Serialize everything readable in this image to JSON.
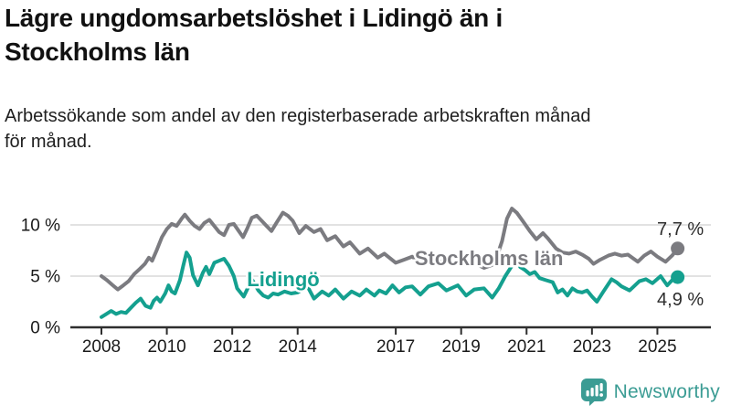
{
  "header": {
    "title": "Lägre ungdomsarbetslöshet i Lidingö än i\nStockholms län",
    "subtitle": "Arbetssökande som andel av den registerbaserade arbetskraften månad\nför månad."
  },
  "chart_data": {
    "type": "line",
    "title": "Lägre ungdomsarbetslöshet i Lidingö än i Stockholms län",
    "subtitle": "Arbetssökande som andel av den registerbaserade arbetskraften månad för månad.",
    "unit": "%",
    "xlim": [
      2007.85,
      2025.95
    ],
    "ylim": [
      0,
      12.4
    ],
    "grid": "horizontal-gridlines-at-5-and-10",
    "legend": "inline-series-labels",
    "y_ticks": [
      {
        "value": 0,
        "label": "0 %"
      },
      {
        "value": 5,
        "label": "5 %"
      },
      {
        "value": 10,
        "label": "10 %"
      }
    ],
    "x_ticks": [
      {
        "value": 2008,
        "label": "2008"
      },
      {
        "value": 2010,
        "label": "2010"
      },
      {
        "value": 2012,
        "label": "2012"
      },
      {
        "value": 2014,
        "label": "2014"
      },
      {
        "value": 2017,
        "label": "2017"
      },
      {
        "value": 2019,
        "label": "2019"
      },
      {
        "value": 2021,
        "label": "2021"
      },
      {
        "value": 2023,
        "label": "2023"
      },
      {
        "value": 2025,
        "label": "2025"
      }
    ],
    "series": [
      {
        "name": "Stockholms län",
        "color": "#7b7b80",
        "end_label": "7,7 %",
        "end_label_pos": "above",
        "label_anchor": [
          2019.85,
          6.05
        ],
        "points": [
          [
            2008.0,
            5.0
          ],
          [
            2008.17,
            4.6
          ],
          [
            2008.33,
            4.15
          ],
          [
            2008.5,
            3.7
          ],
          [
            2008.67,
            4.1
          ],
          [
            2008.83,
            4.5
          ],
          [
            2009.0,
            5.2
          ],
          [
            2009.17,
            5.7
          ],
          [
            2009.33,
            6.2
          ],
          [
            2009.45,
            6.8
          ],
          [
            2009.55,
            6.5
          ],
          [
            2009.7,
            7.6
          ],
          [
            2009.85,
            8.8
          ],
          [
            2010.0,
            9.6
          ],
          [
            2010.15,
            10.1
          ],
          [
            2010.3,
            9.9
          ],
          [
            2010.45,
            10.6
          ],
          [
            2010.55,
            11.0
          ],
          [
            2010.7,
            10.4
          ],
          [
            2010.85,
            9.9
          ],
          [
            2011.0,
            9.6
          ],
          [
            2011.15,
            10.2
          ],
          [
            2011.3,
            10.5
          ],
          [
            2011.45,
            9.9
          ],
          [
            2011.6,
            9.3
          ],
          [
            2011.75,
            9.0
          ],
          [
            2011.9,
            10.0
          ],
          [
            2012.05,
            10.1
          ],
          [
            2012.2,
            9.4
          ],
          [
            2012.33,
            8.8
          ],
          [
            2012.45,
            9.6
          ],
          [
            2012.6,
            10.7
          ],
          [
            2012.75,
            10.9
          ],
          [
            2012.9,
            10.4
          ],
          [
            2013.05,
            9.9
          ],
          [
            2013.2,
            9.4
          ],
          [
            2013.35,
            10.2
          ],
          [
            2013.55,
            11.2
          ],
          [
            2013.7,
            10.9
          ],
          [
            2013.85,
            10.4
          ],
          [
            2014.05,
            9.2
          ],
          [
            2014.25,
            9.9
          ],
          [
            2014.5,
            9.3
          ],
          [
            2014.7,
            9.6
          ],
          [
            2014.9,
            8.5
          ],
          [
            2015.15,
            8.9
          ],
          [
            2015.4,
            7.9
          ],
          [
            2015.6,
            8.3
          ],
          [
            2015.9,
            7.2
          ],
          [
            2016.15,
            7.7
          ],
          [
            2016.45,
            6.8
          ],
          [
            2016.65,
            7.2
          ],
          [
            2017.0,
            6.3
          ],
          [
            2017.25,
            6.6
          ],
          [
            2017.5,
            6.9
          ],
          [
            2017.75,
            6.3
          ],
          [
            2018.05,
            6.7
          ],
          [
            2018.35,
            6.4
          ],
          [
            2018.65,
            6.6
          ],
          [
            2018.95,
            6.1
          ],
          [
            2019.2,
            6.3
          ],
          [
            2019.45,
            6.2
          ],
          [
            2019.7,
            5.8
          ],
          [
            2019.95,
            6.1
          ],
          [
            2020.1,
            7.0
          ],
          [
            2020.25,
            8.4
          ],
          [
            2020.4,
            10.6
          ],
          [
            2020.55,
            11.6
          ],
          [
            2020.7,
            11.2
          ],
          [
            2020.9,
            10.3
          ],
          [
            2021.1,
            9.4
          ],
          [
            2021.3,
            8.6
          ],
          [
            2021.5,
            9.2
          ],
          [
            2021.65,
            8.7
          ],
          [
            2021.9,
            7.7
          ],
          [
            2022.1,
            7.3
          ],
          [
            2022.3,
            7.2
          ],
          [
            2022.5,
            7.4
          ],
          [
            2022.7,
            7.1
          ],
          [
            2022.9,
            6.7
          ],
          [
            2023.05,
            6.2
          ],
          [
            2023.25,
            6.6
          ],
          [
            2023.5,
            7.0
          ],
          [
            2023.7,
            7.2
          ],
          [
            2023.9,
            7.0
          ],
          [
            2024.1,
            7.1
          ],
          [
            2024.4,
            6.4
          ],
          [
            2024.6,
            7.0
          ],
          [
            2024.8,
            7.4
          ],
          [
            2025.0,
            6.9
          ],
          [
            2025.25,
            6.4
          ],
          [
            2025.45,
            7.0
          ],
          [
            2025.62,
            7.7
          ]
        ]
      },
      {
        "name": "Lidingö",
        "color": "#14a08f",
        "end_label": "4,9 %",
        "end_label_pos": "below",
        "label_anchor": [
          2013.56,
          4.02
        ],
        "points": [
          [
            2008.0,
            1.0
          ],
          [
            2008.15,
            1.3
          ],
          [
            2008.3,
            1.6
          ],
          [
            2008.45,
            1.3
          ],
          [
            2008.6,
            1.5
          ],
          [
            2008.75,
            1.4
          ],
          [
            2008.9,
            1.9
          ],
          [
            2009.05,
            2.4
          ],
          [
            2009.2,
            2.8
          ],
          [
            2009.35,
            2.1
          ],
          [
            2009.5,
            1.9
          ],
          [
            2009.6,
            2.6
          ],
          [
            2009.7,
            2.9
          ],
          [
            2009.8,
            2.5
          ],
          [
            2009.95,
            3.3
          ],
          [
            2010.05,
            4.1
          ],
          [
            2010.15,
            3.5
          ],
          [
            2010.25,
            3.3
          ],
          [
            2010.4,
            4.6
          ],
          [
            2010.5,
            6.0
          ],
          [
            2010.6,
            7.3
          ],
          [
            2010.7,
            6.8
          ],
          [
            2010.8,
            5.1
          ],
          [
            2010.95,
            4.1
          ],
          [
            2011.1,
            5.3
          ],
          [
            2011.2,
            5.9
          ],
          [
            2011.3,
            5.2
          ],
          [
            2011.45,
            6.3
          ],
          [
            2011.6,
            6.5
          ],
          [
            2011.75,
            6.7
          ],
          [
            2011.9,
            6.0
          ],
          [
            2012.05,
            5.0
          ],
          [
            2012.15,
            3.8
          ],
          [
            2012.35,
            3.0
          ],
          [
            2012.5,
            4.0
          ],
          [
            2012.62,
            4.6
          ],
          [
            2012.8,
            3.6
          ],
          [
            2012.95,
            3.1
          ],
          [
            2013.1,
            2.9
          ],
          [
            2013.25,
            3.3
          ],
          [
            2013.4,
            3.2
          ],
          [
            2013.6,
            3.5
          ],
          [
            2013.8,
            3.3
          ],
          [
            2014.0,
            3.4
          ],
          [
            2014.3,
            4.0
          ],
          [
            2014.5,
            2.8
          ],
          [
            2014.75,
            3.5
          ],
          [
            2014.95,
            3.1
          ],
          [
            2015.15,
            3.7
          ],
          [
            2015.4,
            2.8
          ],
          [
            2015.65,
            3.5
          ],
          [
            2015.9,
            3.1
          ],
          [
            2016.1,
            3.7
          ],
          [
            2016.35,
            3.1
          ],
          [
            2016.5,
            3.6
          ],
          [
            2016.7,
            3.3
          ],
          [
            2016.9,
            4.1
          ],
          [
            2017.1,
            3.4
          ],
          [
            2017.3,
            3.9
          ],
          [
            2017.5,
            4.0
          ],
          [
            2017.75,
            3.2
          ],
          [
            2018.0,
            4.0
          ],
          [
            2018.3,
            4.3
          ],
          [
            2018.55,
            3.6
          ],
          [
            2018.9,
            4.1
          ],
          [
            2019.15,
            3.1
          ],
          [
            2019.4,
            3.7
          ],
          [
            2019.7,
            3.8
          ],
          [
            2019.95,
            2.9
          ],
          [
            2020.15,
            3.8
          ],
          [
            2020.35,
            5.0
          ],
          [
            2020.55,
            6.0
          ],
          [
            2020.65,
            6.4
          ],
          [
            2020.8,
            5.9
          ],
          [
            2020.95,
            5.6
          ],
          [
            2021.1,
            5.2
          ],
          [
            2021.25,
            5.4
          ],
          [
            2021.4,
            4.8
          ],
          [
            2021.6,
            4.6
          ],
          [
            2021.8,
            4.4
          ],
          [
            2021.95,
            3.4
          ],
          [
            2022.1,
            3.7
          ],
          [
            2022.25,
            3.1
          ],
          [
            2022.4,
            3.8
          ],
          [
            2022.55,
            3.5
          ],
          [
            2022.7,
            3.4
          ],
          [
            2022.85,
            3.6
          ],
          [
            2023.0,
            3.0
          ],
          [
            2023.15,
            2.5
          ],
          [
            2023.35,
            3.5
          ],
          [
            2023.6,
            4.7
          ],
          [
            2023.75,
            4.4
          ],
          [
            2023.9,
            4.0
          ],
          [
            2024.15,
            3.6
          ],
          [
            2024.45,
            4.5
          ],
          [
            2024.65,
            4.7
          ],
          [
            2024.85,
            4.3
          ],
          [
            2025.1,
            5.0
          ],
          [
            2025.3,
            4.1
          ],
          [
            2025.45,
            4.6
          ],
          [
            2025.62,
            4.9
          ]
        ]
      }
    ],
    "colors": {
      "axis": "#2e2e2e",
      "gridline": "#d8d8d8",
      "tick_text": "#1a1a1a",
      "end_label_text": "#2d2d2d"
    }
  },
  "footer": {
    "brand": "Newsworthy",
    "brand_color": "#3B9C94",
    "logo_icon": "bar-chart-speech-bubble-icon"
  }
}
